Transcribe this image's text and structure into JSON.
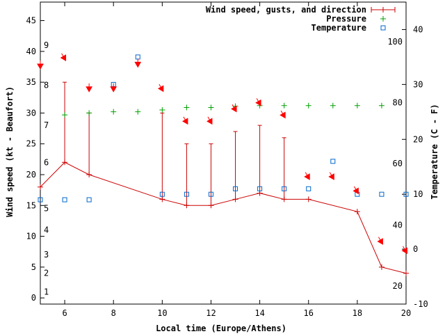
{
  "chart_data": {
    "type": "line",
    "xlabel": "Local time (Europe/Athens)",
    "ylabel_left": "Wind speed (kt - Beaufort)",
    "ylabel_right": "Temperature (C - F)",
    "xlim": [
      5,
      20
    ],
    "ylim_left": [
      -1,
      48
    ],
    "ylim_right": [
      -10,
      45
    ],
    "x_ticks": [
      6,
      8,
      10,
      12,
      14,
      16,
      18,
      20
    ],
    "y_ticks_left": [
      0,
      5,
      10,
      15,
      20,
      25,
      30,
      35,
      40,
      45
    ],
    "y_ticks_right_celsius": [
      -10,
      0,
      10,
      20,
      30,
      40
    ],
    "beaufort_ticks": [
      {
        "label": "1",
        "kt": 1
      },
      {
        "label": "2",
        "kt": 4
      },
      {
        "label": "3",
        "kt": 7
      },
      {
        "label": "4",
        "kt": 11
      },
      {
        "label": "5",
        "kt": 14.5
      },
      {
        "label": "6",
        "kt": 22
      },
      {
        "label": "7",
        "kt": 28
      },
      {
        "label": "8",
        "kt": 34.5
      },
      {
        "label": "9",
        "kt": 41
      }
    ],
    "fahrenheit_ticks": [
      {
        "label": "20",
        "celsius": -6.7
      },
      {
        "label": "40",
        "celsius": 4.4
      },
      {
        "label": "60",
        "celsius": 15.6
      },
      {
        "label": "80",
        "celsius": 26.7
      },
      {
        "label": "100",
        "celsius": 37.8
      }
    ],
    "legend": {
      "position": "top-right",
      "entries": [
        "Wind speed, gusts, and direction",
        "Pressure",
        "Temperature"
      ]
    },
    "series": [
      {
        "name": "Wind speed, gusts, and direction",
        "color": "#cc0000",
        "x": [
          5,
          6,
          7,
          10,
          11,
          12,
          13,
          14,
          15,
          16,
          18,
          19,
          20
        ],
        "speed": [
          18,
          22,
          20,
          16,
          15,
          15,
          16,
          17,
          16,
          16,
          14,
          5,
          4
        ],
        "gust_points": [
          {
            "x": 6,
            "low": 22,
            "high": 35
          },
          {
            "x": 7,
            "low": 20,
            "high": 30
          },
          {
            "x": 10,
            "low": 16,
            "high": 30
          },
          {
            "x": 11,
            "low": 15,
            "high": 25
          },
          {
            "x": 12,
            "low": 15,
            "high": 25
          },
          {
            "x": 13,
            "low": 16,
            "high": 27
          },
          {
            "x": 14,
            "low": 17,
            "high": 28
          },
          {
            "x": 15,
            "low": 16,
            "high": 26
          }
        ]
      },
      {
        "name": "Direction arrows",
        "color": "#ff0000",
        "points": [
          {
            "x": 5,
            "y": 37.5,
            "angle": 0
          },
          {
            "x": 6,
            "y": 38.8,
            "angle": 30
          },
          {
            "x": 7,
            "y": 33.8,
            "angle": 0
          },
          {
            "x": 8,
            "y": 33.8,
            "angle": 0
          },
          {
            "x": 9,
            "y": 37.8,
            "angle": 0
          },
          {
            "x": 10,
            "y": 33.8,
            "angle": 30
          },
          {
            "x": 11,
            "y": 28.5,
            "angle": 30
          },
          {
            "x": 12,
            "y": 28.5,
            "angle": 30
          },
          {
            "x": 13,
            "y": 30.5,
            "angle": 30
          },
          {
            "x": 14,
            "y": 31.5,
            "angle": 30
          },
          {
            "x": 15,
            "y": 29.5,
            "angle": 30
          },
          {
            "x": 16,
            "y": 19.5,
            "angle": 30
          },
          {
            "x": 17,
            "y": 19.5,
            "angle": 30
          },
          {
            "x": 18,
            "y": 17.2,
            "angle": 30
          },
          {
            "x": 19,
            "y": 9,
            "angle": 30
          },
          {
            "x": 20,
            "y": 7.5,
            "angle": 30
          }
        ]
      },
      {
        "name": "Pressure",
        "color": "#00a000",
        "x": [
          6,
          7,
          8,
          9,
          10,
          11,
          12,
          13,
          14,
          15,
          16,
          17,
          18,
          19
        ],
        "y": [
          29.7,
          30,
          30.2,
          30.2,
          30.5,
          30.9,
          30.9,
          31.1,
          31.2,
          31.2,
          31.2,
          31.2,
          31.2,
          31.2
        ]
      },
      {
        "name": "Temperature",
        "color": "#0066cc",
        "x": [
          5,
          6,
          7,
          8,
          9,
          10,
          11,
          12,
          13,
          14,
          15,
          16,
          17,
          18,
          19,
          20
        ],
        "celsius": [
          9,
          9,
          9,
          30,
          35,
          10,
          10,
          10,
          11,
          11,
          11,
          11,
          16,
          10,
          10,
          10
        ]
      }
    ]
  }
}
